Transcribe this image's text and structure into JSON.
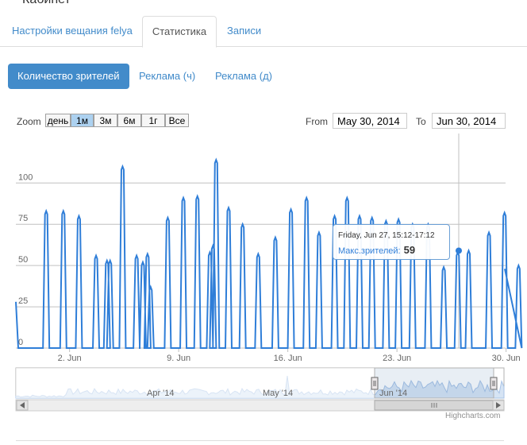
{
  "page": {
    "title_fragment": "Кабинет"
  },
  "tabs": [
    {
      "label": "Настройки вещания felya",
      "active": false
    },
    {
      "label": "Статистика",
      "active": true
    },
    {
      "label": "Записи",
      "active": false
    }
  ],
  "subtabs": [
    {
      "label": "Количество зрителей",
      "active": true
    },
    {
      "label": "Реклама (ч)",
      "active": false
    },
    {
      "label": "Реклама (д)",
      "active": false
    }
  ],
  "range_selector": {
    "zoom_label": "Zoom",
    "buttons": [
      "день",
      "1м",
      "3м",
      "6м",
      "1г",
      "Все"
    ],
    "selected": "1м",
    "from_label": "From",
    "from_value": "May 30, 2014",
    "to_label": "To",
    "to_value": "Jun 30, 2014"
  },
  "tooltip": {
    "date": "Friday, Jun 27, 15:12-17:12",
    "series": "Макс.зрителей:",
    "value": "59"
  },
  "navigator": {
    "labels": [
      "Apr '14",
      "May '14",
      "Jun '14"
    ]
  },
  "credits": "Highcharts.com",
  "colors": {
    "accent": "#428bca",
    "series": "#2f7ed8",
    "grid": "#c0c0c0"
  },
  "chart_data": {
    "type": "line",
    "title": "",
    "xlabel": "",
    "ylabel": "",
    "ylim": [
      0,
      130
    ],
    "yticks": [
      0,
      25,
      50,
      75,
      100
    ],
    "xticks": [
      "2. Jun",
      "9. Jun",
      "16. Jun",
      "23. Jun",
      "30. Jun"
    ],
    "series": [
      {
        "name": "Макс.зрителей",
        "peaks": [
          {
            "day": 0.5,
            "value": 83
          },
          {
            "day": 1.6,
            "value": 83
          },
          {
            "day": 2.6,
            "value": 80
          },
          {
            "day": 3.7,
            "value": 56
          },
          {
            "day": 4.4,
            "value": 53
          },
          {
            "day": 4.6,
            "value": 53
          },
          {
            "day": 5.4,
            "value": 110
          },
          {
            "day": 6.3,
            "value": 56
          },
          {
            "day": 6.7,
            "value": 52
          },
          {
            "day": 7.0,
            "value": 57
          },
          {
            "day": 7.2,
            "value": 37
          },
          {
            "day": 8.3,
            "value": 79
          },
          {
            "day": 9.3,
            "value": 91
          },
          {
            "day": 10.2,
            "value": 92
          },
          {
            "day": 11.0,
            "value": 58
          },
          {
            "day": 11.2,
            "value": 62
          },
          {
            "day": 11.4,
            "value": 114
          },
          {
            "day": 12.2,
            "value": 85
          },
          {
            "day": 13.1,
            "value": 75
          },
          {
            "day": 14.1,
            "value": 57
          },
          {
            "day": 15.2,
            "value": 67
          },
          {
            "day": 16.2,
            "value": 84
          },
          {
            "day": 17.2,
            "value": 91
          },
          {
            "day": 18.0,
            "value": 70
          },
          {
            "day": 19.0,
            "value": 80
          },
          {
            "day": 19.8,
            "value": 91
          },
          {
            "day": 20.6,
            "value": 80
          },
          {
            "day": 21.4,
            "value": 79
          },
          {
            "day": 22.3,
            "value": 77
          },
          {
            "day": 23.1,
            "value": 78
          },
          {
            "day": 24.0,
            "value": 75
          },
          {
            "day": 25.0,
            "value": 75
          },
          {
            "day": 26.0,
            "value": 49
          },
          {
            "day": 26.9,
            "value": 58
          },
          {
            "day": 27.6,
            "value": 59
          },
          {
            "day": 28.9,
            "value": 70
          },
          {
            "day": 29.9,
            "value": 82
          },
          {
            "day": 30.8,
            "value": 50
          }
        ]
      }
    ]
  }
}
